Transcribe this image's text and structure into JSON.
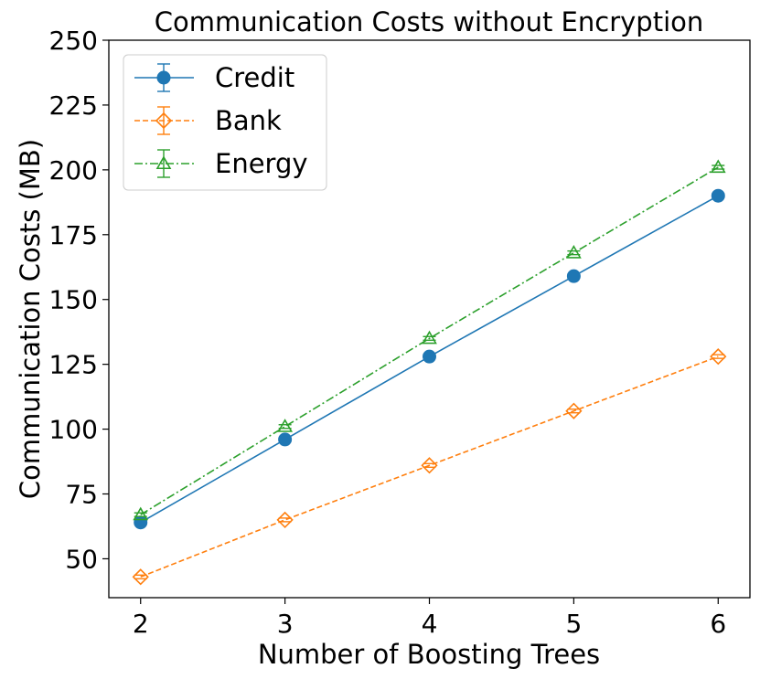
{
  "chart_data": {
    "type": "line",
    "title": "Communication Costs without Encryption",
    "xlabel": "Number of Boosting Trees",
    "ylabel": "Communication Costs (MB)",
    "x": [
      2,
      3,
      4,
      5,
      6
    ],
    "x_ticks": [
      "2",
      "3",
      "4",
      "5",
      "6"
    ],
    "ylim": [
      35,
      250
    ],
    "y_ticks": [
      "50",
      "75",
      "100",
      "125",
      "150",
      "175",
      "200",
      "225",
      "250"
    ],
    "grid": false,
    "legend_position": "top-left",
    "series": [
      {
        "name": "Credit",
        "values": [
          64,
          96,
          128,
          159,
          190
        ],
        "color": "#1f77b4",
        "marker": "circle",
        "linestyle": "solid"
      },
      {
        "name": "Bank",
        "values": [
          43,
          65,
          86,
          107,
          128
        ],
        "color": "#ff7f0e",
        "marker": "diamond",
        "linestyle": "dashed"
      },
      {
        "name": "Energy",
        "values": [
          67,
          101,
          135,
          168,
          201
        ],
        "color": "#2ca02c",
        "marker": "triangle",
        "linestyle": "dashdot"
      }
    ]
  }
}
